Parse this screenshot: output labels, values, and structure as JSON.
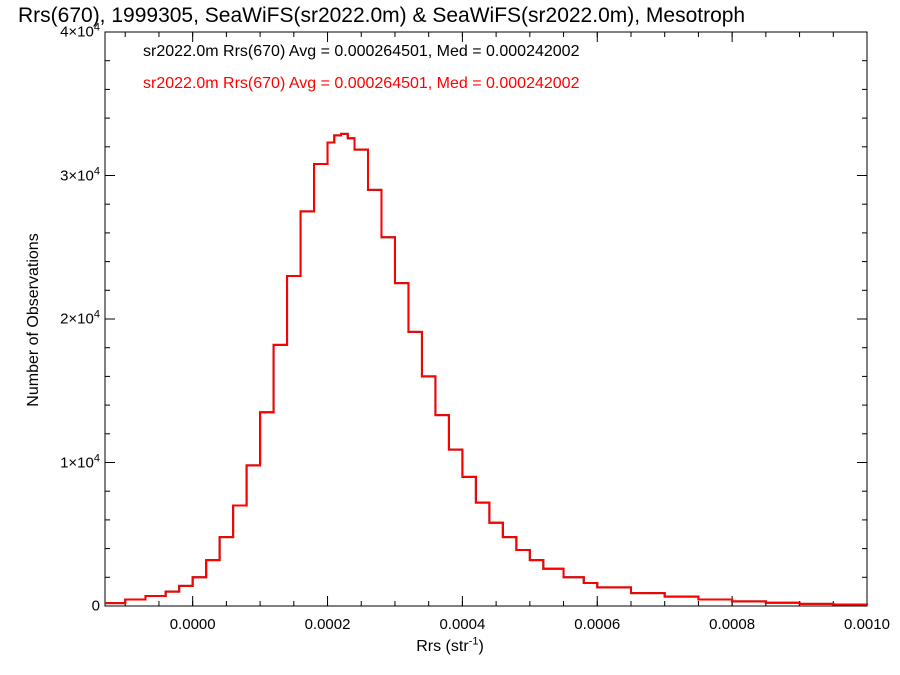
{
  "chart_data": {
    "type": "line",
    "title": "Rrs(670), 1999305, SeaWiFS(sr2022.0m) & SeaWiFS(sr2022.0m), Mesotroph",
    "xlabel": "Rrs (str",
    "xlabel_unit_exponent": "-1",
    "xlabel_close": ")",
    "ylabel": "Number of Observations",
    "xlim": [
      -0.00013,
      0.001
    ],
    "ylim": [
      0,
      40000
    ],
    "xticks": [
      {
        "value": 0.0,
        "label": "0.0000"
      },
      {
        "value": 0.0002,
        "label": "0.0002"
      },
      {
        "value": 0.0004,
        "label": "0.0004"
      },
      {
        "value": 0.0006,
        "label": "0.0006"
      },
      {
        "value": 0.0008,
        "label": "0.0008"
      },
      {
        "value": 0.001,
        "label": "0.0010"
      }
    ],
    "yticks": [
      {
        "value": 0,
        "base": "0",
        "exp": ""
      },
      {
        "value": 10000,
        "base": "1×10",
        "exp": "4"
      },
      {
        "value": 20000,
        "base": "2×10",
        "exp": "4"
      },
      {
        "value": 30000,
        "base": "3×10",
        "exp": "4"
      },
      {
        "value": 40000,
        "base": "4×10",
        "exp": "4"
      }
    ],
    "grid": false,
    "legend_position": "top-left",
    "series": [
      {
        "name": "sr2022.0m Rrs(670) Avg = 0.000264501, Med = 0.000242002",
        "color": "#000000",
        "x": [
          -0.00013,
          -0.0001,
          -7e-05,
          -4e-05,
          -2e-05,
          0.0,
          2e-05,
          4e-05,
          6e-05,
          8e-05,
          0.0001,
          0.00012,
          0.00014,
          0.00016,
          0.00018,
          0.0002,
          0.00021,
          0.00022,
          0.00023,
          0.00024,
          0.00026,
          0.00028,
          0.0003,
          0.00032,
          0.00034,
          0.00036,
          0.00038,
          0.0004,
          0.00042,
          0.00044,
          0.00046,
          0.00048,
          0.0005,
          0.00052,
          0.00055,
          0.00058,
          0.0006,
          0.00065,
          0.0007,
          0.00075,
          0.0008,
          0.00085,
          0.0009,
          0.00095,
          0.001
        ],
        "y": [
          200,
          450,
          700,
          1000,
          1400,
          2000,
          3200,
          4800,
          7000,
          9800,
          13500,
          18200,
          23000,
          27500,
          30800,
          32300,
          32800,
          32900,
          32600,
          31800,
          29000,
          25700,
          22500,
          19100,
          16000,
          13300,
          10900,
          9000,
          7200,
          5800,
          4800,
          3900,
          3200,
          2600,
          2000,
          1600,
          1300,
          900,
          650,
          450,
          320,
          230,
          150,
          100,
          70
        ]
      },
      {
        "name": "sr2022.0m Rrs(670) Avg = 0.000264501, Med = 0.000242002",
        "color": "#ff0000",
        "x": [
          -0.00013,
          -0.0001,
          -7e-05,
          -4e-05,
          -2e-05,
          0.0,
          2e-05,
          4e-05,
          6e-05,
          8e-05,
          0.0001,
          0.00012,
          0.00014,
          0.00016,
          0.00018,
          0.0002,
          0.00021,
          0.00022,
          0.00023,
          0.00024,
          0.00026,
          0.00028,
          0.0003,
          0.00032,
          0.00034,
          0.00036,
          0.00038,
          0.0004,
          0.00042,
          0.00044,
          0.00046,
          0.00048,
          0.0005,
          0.00052,
          0.00055,
          0.00058,
          0.0006,
          0.00065,
          0.0007,
          0.00075,
          0.0008,
          0.00085,
          0.0009,
          0.00095,
          0.001
        ],
        "y": [
          200,
          450,
          700,
          1000,
          1400,
          2000,
          3200,
          4800,
          7000,
          9800,
          13500,
          18200,
          23000,
          27500,
          30800,
          32300,
          32800,
          32900,
          32600,
          31800,
          29000,
          25700,
          22500,
          19100,
          16000,
          13300,
          10900,
          9000,
          7200,
          5800,
          4800,
          3900,
          3200,
          2600,
          2000,
          1600,
          1300,
          900,
          650,
          450,
          320,
          230,
          150,
          100,
          70
        ]
      }
    ]
  }
}
